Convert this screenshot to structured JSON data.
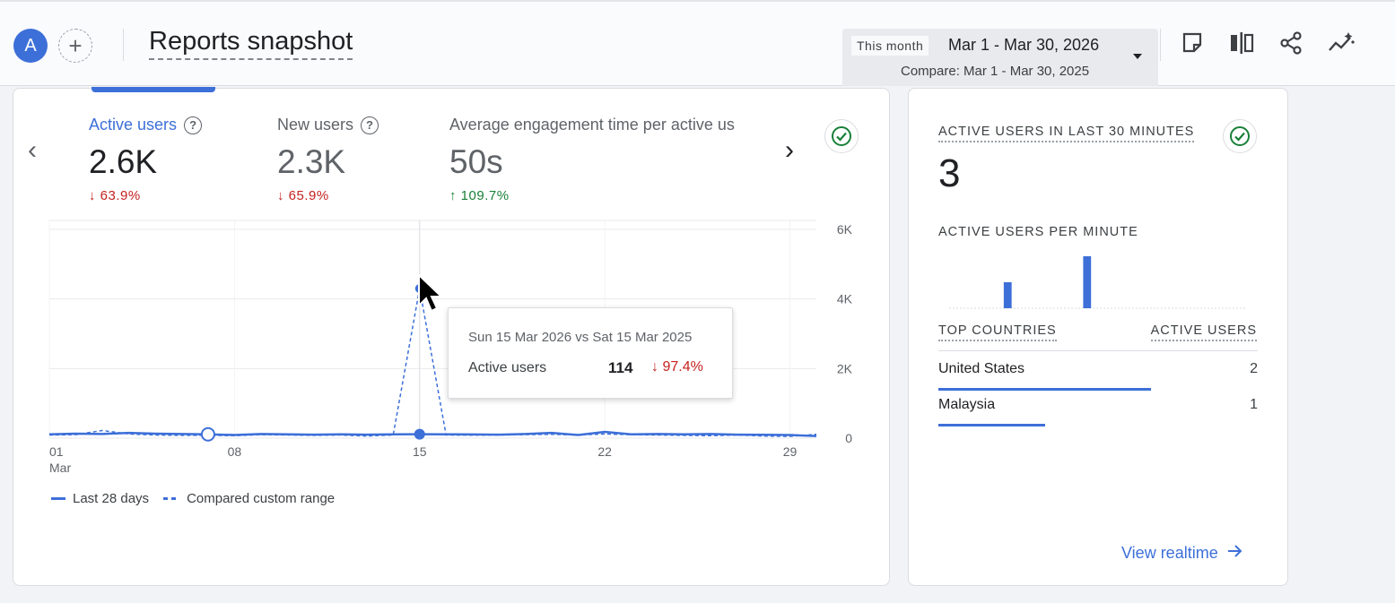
{
  "header": {
    "avatar_letter": "A",
    "add_symbol": "+",
    "title": "Reports snapshot",
    "date_chip": "This month",
    "date_range": "Mar 1 - Mar 30, 2026",
    "compare_range": "Compare: Mar 1 - Mar 30, 2025",
    "tools": [
      "note-icon",
      "compare-columns-icon",
      "share-icon",
      "insights-icon"
    ]
  },
  "metrics": [
    {
      "label": "Active users",
      "value": "2.6K",
      "change": "↓ 63.9%",
      "direction": "down"
    },
    {
      "label": "New users",
      "value": "2.3K",
      "change": "↓ 65.9%",
      "direction": "down"
    },
    {
      "label": "Average engagement time per active us",
      "value": "50s",
      "change": "↑ 109.7%",
      "direction": "up"
    }
  ],
  "chart_data": {
    "type": "line",
    "x_ticks": [
      "01",
      "08",
      "15",
      "22",
      "29"
    ],
    "x_sub": "Mar",
    "y_ticks": [
      "6K",
      "4K",
      "2K",
      "0"
    ],
    "ylim": [
      0,
      6000
    ],
    "x": [
      1,
      2,
      3,
      4,
      5,
      6,
      7,
      8,
      9,
      10,
      11,
      12,
      13,
      14,
      15,
      16,
      17,
      18,
      19,
      20,
      21,
      22,
      23,
      24,
      25,
      26,
      27,
      28,
      29,
      30
    ],
    "series": [
      {
        "name": "Last 28 days",
        "style": "solid",
        "values": [
          110,
          130,
          120,
          150,
          130,
          120,
          110,
          90,
          120,
          110,
          100,
          110,
          100,
          110,
          114,
          110,
          105,
          100,
          120,
          150,
          90,
          180,
          110,
          120,
          110,
          120,
          100,
          95,
          90,
          60
        ]
      },
      {
        "name": "Compared custom range",
        "style": "dashed",
        "values": [
          90,
          100,
          220,
          120,
          90,
          80,
          80,
          70,
          100,
          90,
          80,
          90,
          60,
          90,
          4300,
          90,
          85,
          90,
          100,
          110,
          90,
          120,
          100,
          90,
          80,
          70,
          90,
          60,
          50,
          110
        ]
      }
    ],
    "legend": "bottom-left"
  },
  "tooltip": {
    "date": "Sun 15 Mar 2026 vs Sat 15 Mar 2025",
    "metric": "Active users",
    "value": "114",
    "change": "↓ 97.4%"
  },
  "realtime": {
    "title": "ACTIVE USERS IN LAST 30 MINUTES",
    "count": "3",
    "per_minute_label": "ACTIVE USERS PER MINUTE",
    "per_minute_values": [
      0,
      0,
      0,
      0,
      0,
      0,
      0,
      0,
      0,
      0,
      0,
      1,
      0,
      0,
      0,
      0,
      0,
      0,
      0,
      0,
      0,
      0,
      0,
      0,
      0,
      0,
      0,
      2,
      0,
      0,
      0,
      0,
      0,
      0,
      0,
      0,
      0,
      0,
      0,
      0,
      0,
      0,
      0,
      0,
      0,
      0,
      0,
      0,
      0,
      0,
      0,
      0,
      0,
      0,
      0,
      0,
      0,
      0,
      0,
      0
    ],
    "countries_header": "TOP COUNTRIES",
    "users_header": "ACTIVE USERS",
    "countries": [
      {
        "name": "United States",
        "value": "2",
        "share": 1.0
      },
      {
        "name": "Malaysia",
        "value": "1",
        "share": 0.5
      }
    ],
    "view_link": "View realtime"
  },
  "colors": {
    "accent": "#3d6fd8",
    "down": "#c5221f",
    "up": "#188038"
  }
}
